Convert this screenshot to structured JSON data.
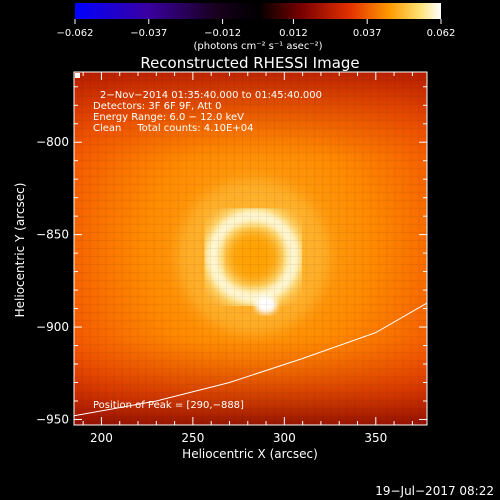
{
  "colorbar": {
    "ticks": [
      -0.062,
      -0.037,
      -0.012,
      0.012,
      0.037,
      0.062
    ],
    "tick_labels": [
      "−0.062",
      "−0.037",
      "−0.012",
      "0.012",
      "0.037",
      "0.062"
    ],
    "unit_label": "(photons cm⁻² s⁻¹ asec⁻²)",
    "colors": [
      "#0000ff",
      "#4b0082",
      "#000000",
      "#7a0000",
      "#e23000",
      "#ff8c00",
      "#ffd34a",
      "#ffffff"
    ]
  },
  "chart_data": {
    "type": "heatmap",
    "title": "Reconstructed RHESSI Image",
    "xlabel": "Heliocentric X (arcsec)",
    "ylabel": "Heliocentric Y (arcsec)",
    "xlim": [
      185,
      378
    ],
    "ylim": [
      -953,
      -762
    ],
    "x_ticks": [
      200,
      250,
      300,
      350
    ],
    "y_ticks": [
      -800,
      -850,
      -900,
      -950
    ],
    "tick_labels_x": [
      "200",
      "250",
      "300",
      "350"
    ],
    "tick_labels_y": [
      "−800",
      "−850",
      "−900",
      "−950"
    ],
    "annotations": [
      "2−Nov−2014 01:35:40.000 to 01:45:40.000",
      "Detectors: 3F 6F 9F, Att 0",
      "Energy Range: 6.0 − 12.0 keV",
      "Clean     Total counts: 4.10E+04"
    ],
    "peak_label": "Position of Peak = [290,−888]",
    "peak": [
      290,
      -888
    ],
    "ring_center": [
      283,
      -862
    ],
    "ring_radius": 22,
    "limb": [
      [
        185,
        -948
      ],
      [
        230,
        -940
      ],
      [
        270,
        -930
      ],
      [
        310,
        -917
      ],
      [
        350,
        -903
      ],
      [
        378,
        -887
      ]
    ]
  },
  "footer": {
    "timestamp": "19−Jul−2017 08:22"
  }
}
